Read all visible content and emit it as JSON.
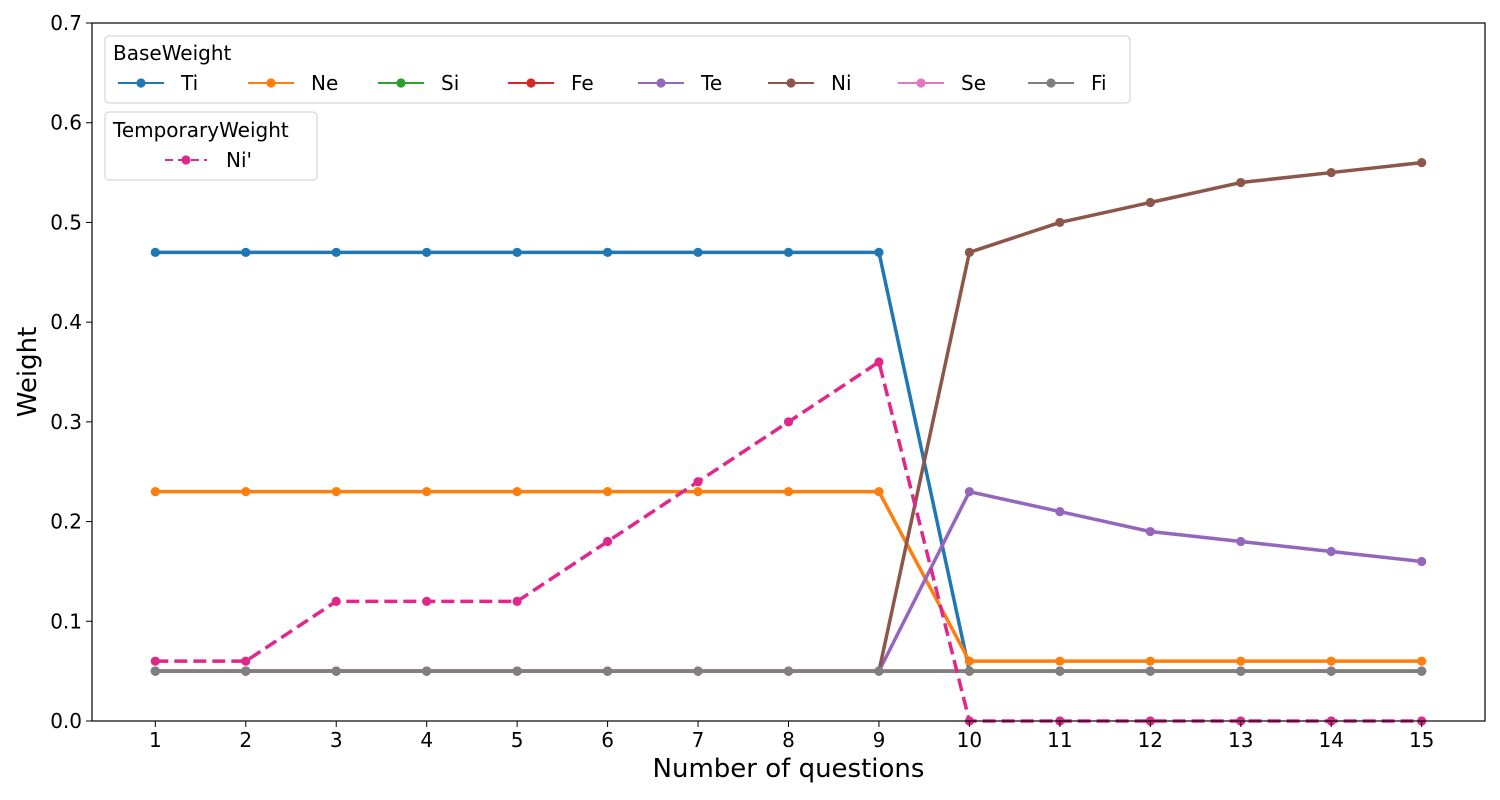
{
  "chart_data": {
    "type": "line",
    "xlabel": "Number of questions",
    "ylabel": "Weight",
    "x": [
      1,
      2,
      3,
      4,
      5,
      6,
      7,
      8,
      9,
      10,
      11,
      12,
      13,
      14,
      15
    ],
    "x_tick_labels": [
      "1",
      "2",
      "3",
      "4",
      "5",
      "6",
      "7",
      "8",
      "9",
      "10",
      "11",
      "12",
      "13",
      "14",
      "15"
    ],
    "ylim": [
      0,
      0.7
    ],
    "y_ticks": [
      0.0,
      0.1,
      0.2,
      0.3,
      0.4,
      0.5,
      0.6,
      0.7
    ],
    "y_tick_labels": [
      "0.0",
      "0.1",
      "0.2",
      "0.3",
      "0.4",
      "0.5",
      "0.6",
      "0.7"
    ],
    "grid": false,
    "legends": [
      {
        "title": "BaseWeight",
        "placement": "top-left"
      },
      {
        "title": "TemporaryWeight",
        "placement": "top-left"
      }
    ],
    "series": [
      {
        "name": "Ti",
        "group": "BaseWeight",
        "color": "#1f77b4",
        "dashed": false,
        "values": [
          0.47,
          0.47,
          0.47,
          0.47,
          0.47,
          0.47,
          0.47,
          0.47,
          0.47,
          0.05,
          0.05,
          0.05,
          0.05,
          0.05,
          0.05
        ]
      },
      {
        "name": "Ne",
        "group": "BaseWeight",
        "color": "#ff7f0e",
        "dashed": false,
        "values": [
          0.23,
          0.23,
          0.23,
          0.23,
          0.23,
          0.23,
          0.23,
          0.23,
          0.23,
          0.06,
          0.06,
          0.06,
          0.06,
          0.06,
          0.06
        ]
      },
      {
        "name": "Si",
        "group": "BaseWeight",
        "color": "#2ca02c",
        "dashed": false,
        "values": [
          0.05,
          0.05,
          0.05,
          0.05,
          0.05,
          0.05,
          0.05,
          0.05,
          0.05,
          0.05,
          0.05,
          0.05,
          0.05,
          0.05,
          0.05
        ]
      },
      {
        "name": "Fe",
        "group": "BaseWeight",
        "color": "#d62728",
        "dashed": false,
        "values": [
          0.05,
          0.05,
          0.05,
          0.05,
          0.05,
          0.05,
          0.05,
          0.05,
          0.05,
          0.05,
          0.05,
          0.05,
          0.05,
          0.05,
          0.05
        ]
      },
      {
        "name": "Te",
        "group": "BaseWeight",
        "color": "#9467bd",
        "dashed": false,
        "values": [
          0.05,
          0.05,
          0.05,
          0.05,
          0.05,
          0.05,
          0.05,
          0.05,
          0.05,
          0.23,
          0.21,
          0.19,
          0.18,
          0.17,
          0.16
        ]
      },
      {
        "name": "Ni",
        "group": "BaseWeight",
        "color": "#8c564b",
        "dashed": false,
        "values": [
          0.05,
          0.05,
          0.05,
          0.05,
          0.05,
          0.05,
          0.05,
          0.05,
          0.05,
          0.47,
          0.5,
          0.52,
          0.54,
          0.55,
          0.56
        ]
      },
      {
        "name": "Se",
        "group": "BaseWeight",
        "color": "#e377c2",
        "dashed": false,
        "values": [
          0.05,
          0.05,
          0.05,
          0.05,
          0.05,
          0.05,
          0.05,
          0.05,
          0.05,
          0.05,
          0.05,
          0.05,
          0.05,
          0.05,
          0.05
        ]
      },
      {
        "name": "Fi",
        "group": "BaseWeight",
        "color": "#7f7f7f",
        "dashed": false,
        "values": [
          0.05,
          0.05,
          0.05,
          0.05,
          0.05,
          0.05,
          0.05,
          0.05,
          0.05,
          0.05,
          0.05,
          0.05,
          0.05,
          0.05,
          0.05
        ]
      },
      {
        "name": "Ni'",
        "group": "TemporaryWeight",
        "color": "#e0288a",
        "dashed": true,
        "values": [
          0.06,
          0.06,
          0.12,
          0.12,
          0.12,
          0.18,
          0.24,
          0.3,
          0.36,
          0.0,
          0.0,
          0.0,
          0.0,
          0.0,
          0.0
        ]
      }
    ]
  }
}
